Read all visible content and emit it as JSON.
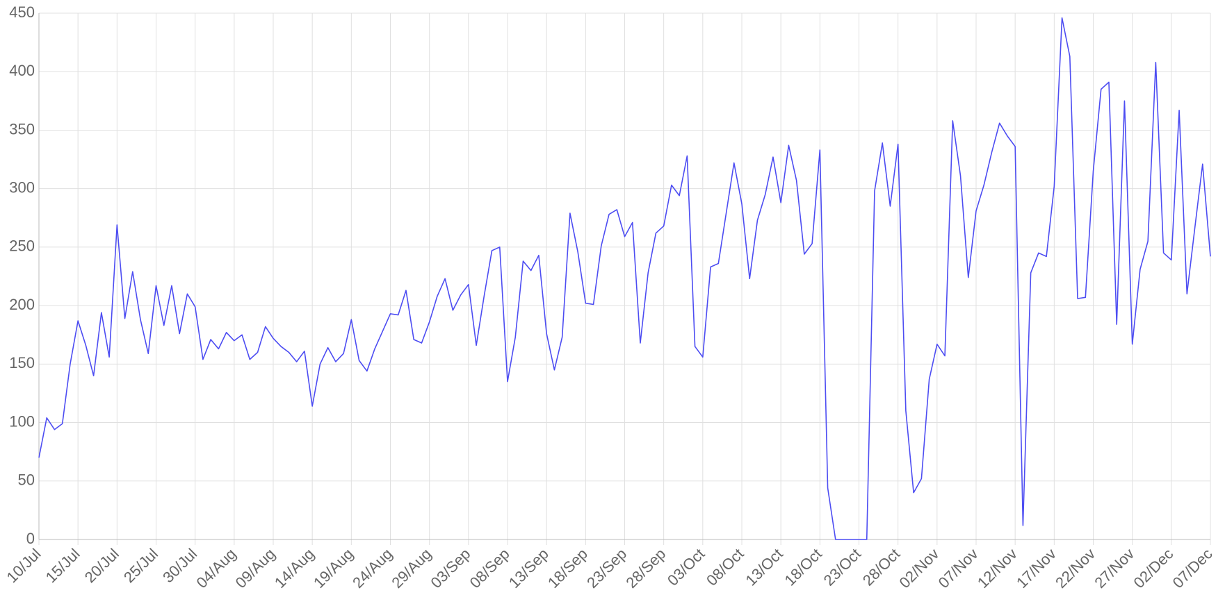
{
  "chart_data": {
    "type": "line",
    "categories": [
      "10/Jul",
      null,
      null,
      null,
      null,
      "15/Jul",
      null,
      null,
      null,
      null,
      "20/Jul",
      null,
      null,
      null,
      null,
      "25/Jul",
      null,
      null,
      null,
      null,
      "30/Jul",
      null,
      null,
      null,
      null,
      "04/Aug",
      null,
      null,
      null,
      null,
      "09/Aug",
      null,
      null,
      null,
      null,
      "14/Aug",
      null,
      null,
      null,
      null,
      "19/Aug",
      null,
      null,
      null,
      null,
      "24/Aug",
      null,
      null,
      null,
      null,
      "29/Aug",
      null,
      null,
      null,
      null,
      "03/Sep",
      null,
      null,
      null,
      null,
      "08/Sep",
      null,
      null,
      null,
      null,
      "13/Sep",
      null,
      null,
      null,
      null,
      "18/Sep",
      null,
      null,
      null,
      null,
      "23/Sep",
      null,
      null,
      null,
      null,
      "28/Sep",
      null,
      null,
      null,
      null,
      "03/Oct",
      null,
      null,
      null,
      null,
      "08/Oct",
      null,
      null,
      null,
      null,
      "13/Oct",
      null,
      null,
      null,
      null,
      "18/Oct",
      null,
      null,
      null,
      null,
      "23/Oct",
      null,
      null,
      null,
      null,
      "28/Oct",
      null,
      null,
      null,
      null,
      "02/Nov",
      null,
      null,
      null,
      null,
      "07/Nov",
      null,
      null,
      null,
      null,
      "12/Nov",
      null,
      null,
      null,
      null,
      "17/Nov",
      null,
      null,
      null,
      null,
      "22/Nov",
      null,
      null,
      null,
      null,
      "27/Nov",
      null,
      null,
      null,
      null,
      "02/Dec",
      null,
      null,
      null,
      null,
      "07/Dec"
    ],
    "values": [
      70,
      104,
      94,
      99,
      150,
      187,
      166,
      140,
      194,
      156,
      269,
      189,
      229,
      188,
      159,
      217,
      183,
      217,
      176,
      210,
      199,
      154,
      171,
      163,
      177,
      170,
      175,
      154,
      160,
      182,
      172,
      165,
      160,
      152,
      161,
      114,
      150,
      164,
      152,
      159,
      188,
      153,
      144,
      163,
      178,
      193,
      192,
      213,
      171,
      168,
      186,
      208,
      223,
      196,
      209,
      218,
      166,
      208,
      247,
      250,
      135,
      173,
      238,
      230,
      243,
      176,
      145,
      173,
      279,
      246,
      202,
      201,
      251,
      278,
      282,
      259,
      271,
      168,
      228,
      262,
      268,
      303,
      294,
      328,
      165,
      156,
      233,
      236,
      279,
      322,
      287,
      223,
      273,
      295,
      327,
      288,
      337,
      307,
      244,
      253,
      333,
      44,
      0,
      0,
      0,
      0,
      0,
      298,
      339,
      285,
      338,
      110,
      40,
      52,
      137,
      167,
      157,
      358,
      311,
      224,
      281,
      303,
      331,
      356,
      345,
      336,
      12,
      228,
      245,
      242,
      302,
      446,
      413,
      206,
      207,
      315,
      385,
      391,
      184,
      375,
      167,
      231,
      255,
      408,
      245,
      239,
      367,
      210,
      266,
      321,
      242
    ],
    "color": "#4d4df2",
    "ylim": [
      0,
      450
    ],
    "yticks": [
      0,
      50,
      100,
      150,
      200,
      250,
      300,
      350,
      400,
      450
    ],
    "grid": true
  }
}
